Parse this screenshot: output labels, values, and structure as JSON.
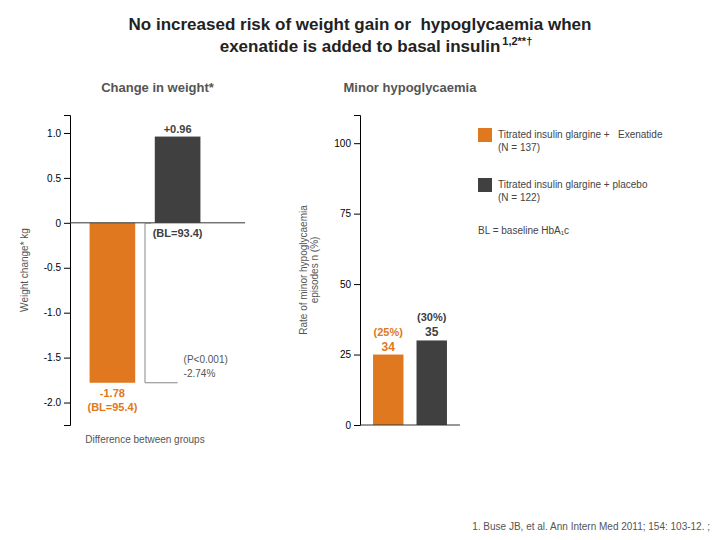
{
  "title": "No increased risk of weight gain or  hypoglycaemia when\nexenatide is added to basal insulin",
  "annotations": [
    "1,2**†",
    "BL = baseline HbA₁c",
    "1. Buse JB, et al. Ann Intern Med 2011; 154: 103-12. ;"
  ],
  "series": [
    {
      "name": "Titrated insulin glargine +   Exenatide\n(N = 137)",
      "color": "#e07820"
    },
    {
      "name": "Titrated insulin glargine + placebo\n(N = 122)",
      "color": "#404040"
    }
  ],
  "chart_data": [
    {
      "type": "bar",
      "title": "Change in weight*",
      "categories": [
        null,
        null
      ],
      "values": [
        -1.78,
        0.96
      ],
      "value_labels": [
        "-1.78",
        "+0.96"
      ],
      "data_labels": true,
      "ylim": [
        -2.25,
        1.2
      ],
      "yticks": [
        {
          "value": -2.0,
          "label": "-2.0"
        },
        -1.5,
        {
          "value": -1.0,
          "label": "-1.0"
        },
        -0.5,
        0,
        0.5,
        {
          "value": 1.0,
          "label": "1.0"
        }
      ],
      "ylabel": "Weight change* kg",
      "tick_labels": "y",
      "annotations": [
        "(BL=95.4)",
        "(BL=93.4)",
        "-2.74%",
        "(P<0.001)",
        "Difference between groups"
      ]
    },
    {
      "type": "bar",
      "title": "Minor hypoglycaemia",
      "categories": [
        null,
        null
      ],
      "values": [
        25,
        30
      ],
      "value_labels": [
        "(25%)",
        "(30%)"
      ],
      "counts": [
        34,
        35
      ],
      "data_labels": true,
      "ylim": [
        0,
        110
      ],
      "yticks": [
        0,
        25,
        50,
        75,
        100
      ],
      "ylabel": "Rate of minor hypoglycaemia\nepisodes n (%)",
      "tick_labels": "y"
    }
  ]
}
